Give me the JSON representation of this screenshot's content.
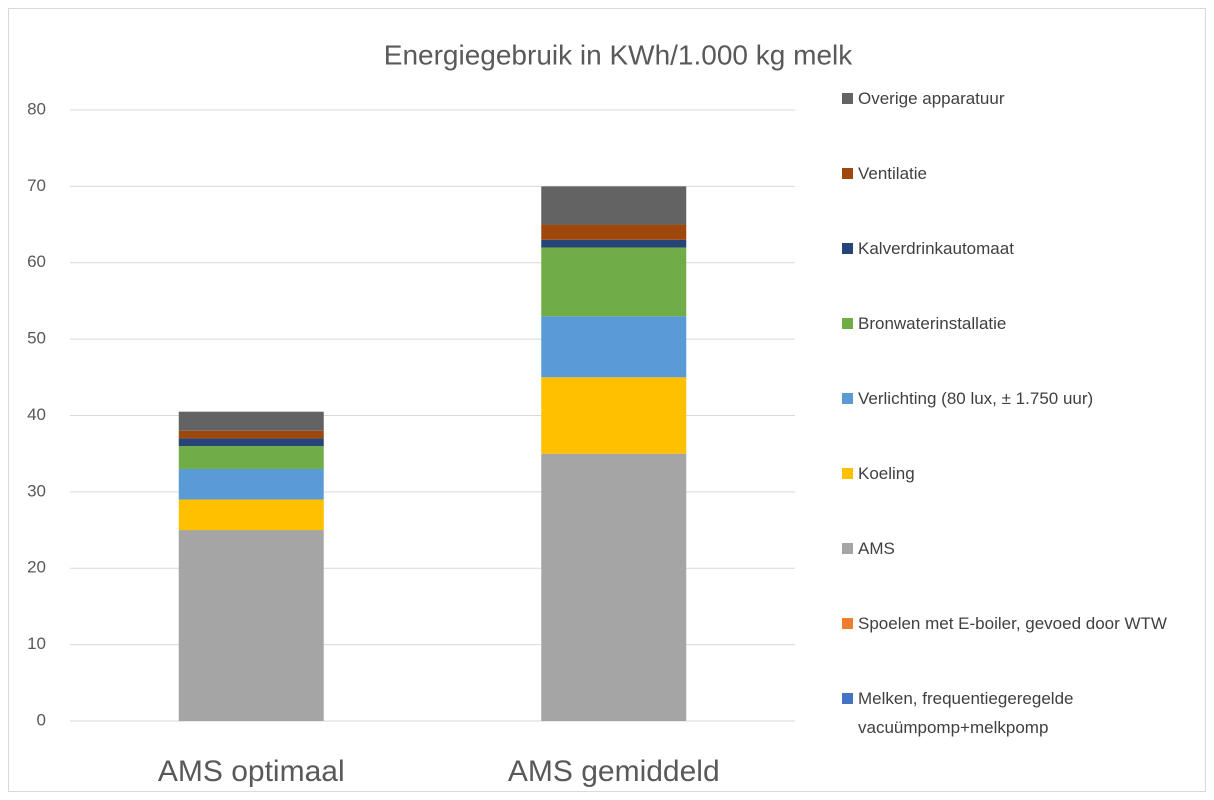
{
  "chart_data": {
    "type": "stacked_bar",
    "title": "Energiegebruik in KWh/1.000 kg melk",
    "categories": [
      "AMS optimaal",
      "AMS gemiddeld"
    ],
    "series": [
      {
        "name": "Melken, frequentiegeregelde vacuümpomp+melkpomp",
        "color": "#4472c4",
        "values": [
          0,
          0
        ]
      },
      {
        "name": "Spoelen met E-boiler, gevoed door WTW",
        "color": "#ed7d31",
        "values": [
          0,
          0
        ]
      },
      {
        "name": "AMS",
        "color": "#a5a5a5",
        "values": [
          25,
          35
        ]
      },
      {
        "name": "Koeling",
        "color": "#ffc000",
        "values": [
          4,
          10
        ]
      },
      {
        "name": "Verlichting (80 lux, ± 1.750 uur)",
        "color": "#5b9bd5",
        "values": [
          4,
          8
        ]
      },
      {
        "name": "Bronwaterinstallatie",
        "color": "#70ad47",
        "values": [
          3,
          9
        ]
      },
      {
        "name": "Kalverdrinkautomaat",
        "color": "#264478",
        "values": [
          1,
          1
        ]
      },
      {
        "name": "Ventilatie",
        "color": "#9e480e",
        "values": [
          1,
          2
        ]
      },
      {
        "name": "Overige apparatuur",
        "color": "#636363",
        "values": [
          2.5,
          5
        ]
      }
    ],
    "ylim": [
      0,
      80
    ],
    "yticks": [
      0,
      10,
      20,
      30,
      40,
      50,
      60,
      70,
      80
    ],
    "grid": true,
    "legend": "right"
  }
}
